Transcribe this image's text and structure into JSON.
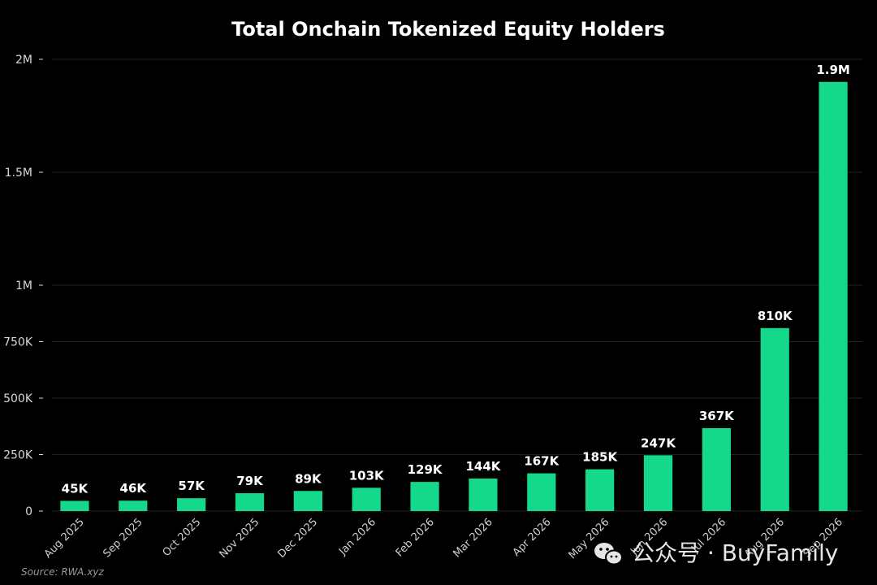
{
  "chart_data": {
    "type": "bar",
    "title": "Total Onchain Tokenized Equity Holders",
    "xlabel": "",
    "ylabel": "",
    "categories": [
      "Aug 2025",
      "Sep 2025",
      "Oct 2025",
      "Nov 2025",
      "Dec 2025",
      "Jan 2026",
      "Feb 2026",
      "Mar 2026",
      "Apr 2026",
      "May 2026",
      "Jun 2026",
      "Jul 2026",
      "Aug 2026",
      "Sep 2026"
    ],
    "values": [
      45000,
      46000,
      57000,
      79000,
      89000,
      103000,
      129000,
      144000,
      167000,
      185000,
      247000,
      367000,
      810000,
      1900000
    ],
    "data_labels": [
      "45K",
      "46K",
      "57K",
      "79K",
      "89K",
      "103K",
      "129K",
      "144K",
      "167K",
      "185K",
      "247K",
      "367K",
      "810K",
      "1.9M"
    ],
    "ylim": [
      0,
      2000000
    ],
    "yticks": [
      0,
      250000,
      500000,
      750000,
      1000000,
      1500000,
      2000000
    ],
    "ytick_labels": [
      "0",
      "250K",
      "500K",
      "750K",
      "1M",
      "1.5M",
      "2M"
    ],
    "grid": true,
    "bar_color": "#14d98a",
    "background": "#000000"
  },
  "source": "Source: RWA.xyz",
  "watermark": {
    "text": "公众号 · BuyFamily",
    "icon": "wechat-icon"
  }
}
